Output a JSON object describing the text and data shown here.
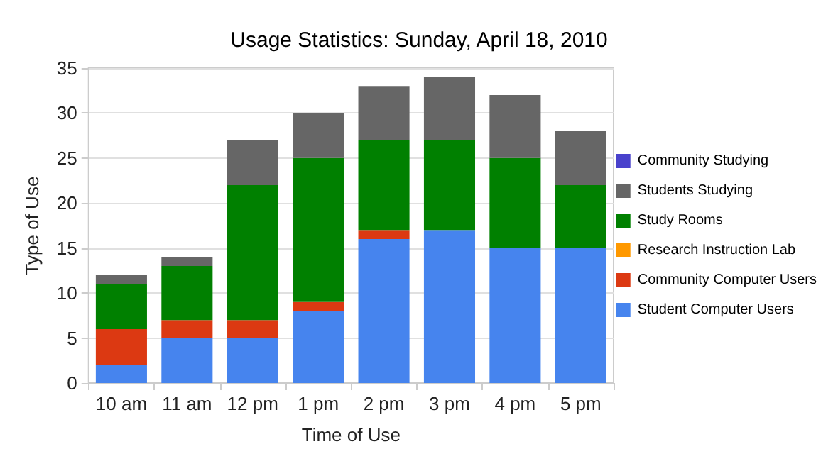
{
  "chart_data": {
    "type": "bar",
    "title": "Usage Statistics: Sunday, April 18, 2010",
    "xlabel": "Time of Use",
    "ylabel": "Type of Use",
    "categories": [
      "10 am",
      "11 am",
      "12 pm",
      "1 pm",
      "2 pm",
      "3 pm",
      "4 pm",
      "5 pm"
    ],
    "stacked": true,
    "series": [
      {
        "name": "Student Computer Users",
        "color": "#4684ee",
        "values": [
          2,
          5,
          5,
          8,
          16,
          17,
          15,
          15
        ]
      },
      {
        "name": "Community Computer Users",
        "color": "#dc3912",
        "values": [
          4,
          2,
          2,
          1,
          1,
          0,
          0,
          0
        ]
      },
      {
        "name": "Research Instruction Lab",
        "color": "#ff9900",
        "values": [
          0,
          0,
          0,
          0,
          0,
          0,
          0,
          0
        ]
      },
      {
        "name": "Study Rooms",
        "color": "#008000",
        "values": [
          5,
          6,
          15,
          16,
          10,
          10,
          10,
          7
        ]
      },
      {
        "name": "Students Studying",
        "color": "#666666",
        "values": [
          1,
          1,
          5,
          5,
          6,
          7,
          7,
          6
        ]
      },
      {
        "name": "Community Studying",
        "color": "#4942cc",
        "values": [
          0,
          0,
          0,
          0,
          0,
          0,
          0,
          0
        ]
      }
    ],
    "ylim": [
      0,
      35
    ],
    "yticks": [
      0,
      5,
      10,
      15,
      20,
      25,
      30,
      35
    ],
    "grid": "y",
    "legend": "right"
  }
}
